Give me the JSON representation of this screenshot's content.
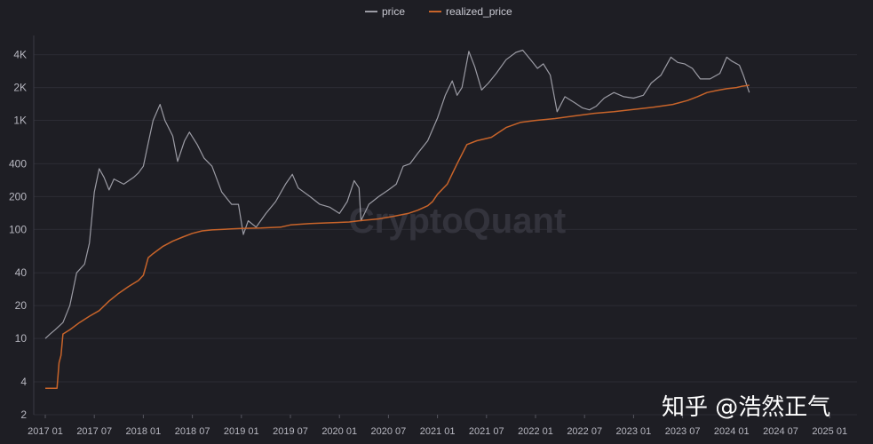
{
  "chart_data": {
    "type": "line",
    "yscale": "log",
    "ylim": [
      2,
      6000
    ],
    "grid": "horizontal",
    "legend_position": "top-center",
    "y_ticks": [
      {
        "value": 2,
        "label": "2"
      },
      {
        "value": 4,
        "label": "4"
      },
      {
        "value": 10,
        "label": "10"
      },
      {
        "value": 20,
        "label": "20"
      },
      {
        "value": 40,
        "label": "40"
      },
      {
        "value": 100,
        "label": "100"
      },
      {
        "value": 200,
        "label": "200"
      },
      {
        "value": 400,
        "label": "400"
      },
      {
        "value": 1000,
        "label": "1K"
      },
      {
        "value": 2000,
        "label": "2K"
      },
      {
        "value": 4000,
        "label": "4K"
      }
    ],
    "x_ticks": [
      "2017 01",
      "2017 07",
      "2018 01",
      "2018 07",
      "2019 01",
      "2019 07",
      "2020 01",
      "2020 07",
      "2021 01",
      "2021 07",
      "2022 01",
      "2022 07",
      "2023 01",
      "2023 07",
      "2024 01",
      "2024 07",
      "2025 01"
    ],
    "series": [
      {
        "name": "price",
        "color": "#9b9ba4",
        "points": [
          [
            0.0,
            10
          ],
          [
            0.05,
            11
          ],
          [
            0.1,
            12
          ],
          [
            0.18,
            14
          ],
          [
            0.25,
            20
          ],
          [
            0.32,
            40
          ],
          [
            0.4,
            48
          ],
          [
            0.45,
            75
          ],
          [
            0.5,
            220
          ],
          [
            0.55,
            360
          ],
          [
            0.6,
            300
          ],
          [
            0.65,
            230
          ],
          [
            0.7,
            290
          ],
          [
            0.8,
            260
          ],
          [
            0.9,
            300
          ],
          [
            0.95,
            330
          ],
          [
            1.0,
            380
          ],
          [
            1.05,
            620
          ],
          [
            1.1,
            1000
          ],
          [
            1.17,
            1400
          ],
          [
            1.22,
            1000
          ],
          [
            1.3,
            720
          ],
          [
            1.35,
            420
          ],
          [
            1.42,
            650
          ],
          [
            1.47,
            780
          ],
          [
            1.55,
            600
          ],
          [
            1.62,
            450
          ],
          [
            1.7,
            380
          ],
          [
            1.8,
            220
          ],
          [
            1.9,
            170
          ],
          [
            1.97,
            170
          ],
          [
            2.02,
            90
          ],
          [
            2.07,
            120
          ],
          [
            2.15,
            105
          ],
          [
            2.25,
            140
          ],
          [
            2.35,
            180
          ],
          [
            2.45,
            260
          ],
          [
            2.52,
            320
          ],
          [
            2.58,
            240
          ],
          [
            2.7,
            200
          ],
          [
            2.8,
            170
          ],
          [
            2.9,
            160
          ],
          [
            3.0,
            140
          ],
          [
            3.08,
            180
          ],
          [
            3.15,
            280
          ],
          [
            3.2,
            240
          ],
          [
            3.22,
            120
          ],
          [
            3.3,
            170
          ],
          [
            3.4,
            200
          ],
          [
            3.5,
            230
          ],
          [
            3.58,
            260
          ],
          [
            3.65,
            380
          ],
          [
            3.72,
            400
          ],
          [
            3.8,
            500
          ],
          [
            3.9,
            650
          ],
          [
            4.0,
            1050
          ],
          [
            4.08,
            1700
          ],
          [
            4.15,
            2300
          ],
          [
            4.2,
            1700
          ],
          [
            4.25,
            2000
          ],
          [
            4.32,
            4300
          ],
          [
            4.38,
            3100
          ],
          [
            4.45,
            1900
          ],
          [
            4.52,
            2200
          ],
          [
            4.6,
            2700
          ],
          [
            4.7,
            3600
          ],
          [
            4.8,
            4200
          ],
          [
            4.87,
            4400
          ],
          [
            4.95,
            3600
          ],
          [
            5.02,
            3000
          ],
          [
            5.08,
            3300
          ],
          [
            5.15,
            2600
          ],
          [
            5.22,
            1200
          ],
          [
            5.3,
            1650
          ],
          [
            5.4,
            1450
          ],
          [
            5.48,
            1300
          ],
          [
            5.55,
            1250
          ],
          [
            5.62,
            1350
          ],
          [
            5.7,
            1600
          ],
          [
            5.8,
            1800
          ],
          [
            5.9,
            1650
          ],
          [
            6.0,
            1600
          ],
          [
            6.1,
            1700
          ],
          [
            6.18,
            2200
          ],
          [
            6.28,
            2600
          ],
          [
            6.38,
            3800
          ],
          [
            6.45,
            3400
          ],
          [
            6.52,
            3300
          ],
          [
            6.6,
            3000
          ],
          [
            6.68,
            2400
          ],
          [
            6.78,
            2400
          ],
          [
            6.88,
            2700
          ],
          [
            6.95,
            3800
          ],
          [
            7.0,
            3500
          ],
          [
            7.08,
            3200
          ],
          [
            7.12,
            2600
          ],
          [
            7.18,
            1800
          ]
        ]
      },
      {
        "name": "realized_price",
        "color": "#c8642a",
        "points": [
          [
            0.0,
            3.5
          ],
          [
            0.12,
            3.5
          ],
          [
            0.14,
            6
          ],
          [
            0.16,
            7
          ],
          [
            0.18,
            11
          ],
          [
            0.25,
            12
          ],
          [
            0.35,
            14
          ],
          [
            0.45,
            16
          ],
          [
            0.55,
            18
          ],
          [
            0.65,
            22
          ],
          [
            0.75,
            26
          ],
          [
            0.85,
            30
          ],
          [
            0.95,
            34
          ],
          [
            1.0,
            38
          ],
          [
            1.05,
            55
          ],
          [
            1.1,
            60
          ],
          [
            1.2,
            70
          ],
          [
            1.3,
            78
          ],
          [
            1.4,
            85
          ],
          [
            1.5,
            92
          ],
          [
            1.6,
            97
          ],
          [
            1.7,
            99
          ],
          [
            1.8,
            100
          ],
          [
            1.9,
            101
          ],
          [
            2.0,
            102
          ],
          [
            2.2,
            103
          ],
          [
            2.4,
            105
          ],
          [
            2.5,
            110
          ],
          [
            2.7,
            113
          ],
          [
            2.9,
            115
          ],
          [
            3.1,
            117
          ],
          [
            3.2,
            120
          ],
          [
            3.4,
            125
          ],
          [
            3.55,
            132
          ],
          [
            3.7,
            140
          ],
          [
            3.8,
            150
          ],
          [
            3.9,
            165
          ],
          [
            3.95,
            180
          ],
          [
            4.0,
            210
          ],
          [
            4.1,
            260
          ],
          [
            4.2,
            400
          ],
          [
            4.3,
            600
          ],
          [
            4.4,
            650
          ],
          [
            4.55,
            700
          ],
          [
            4.7,
            860
          ],
          [
            4.85,
            960
          ],
          [
            5.0,
            1000
          ],
          [
            5.2,
            1040
          ],
          [
            5.4,
            1100
          ],
          [
            5.6,
            1160
          ],
          [
            5.8,
            1200
          ],
          [
            6.0,
            1260
          ],
          [
            6.2,
            1320
          ],
          [
            6.4,
            1400
          ],
          [
            6.55,
            1520
          ],
          [
            6.65,
            1650
          ],
          [
            6.75,
            1800
          ],
          [
            6.85,
            1880
          ],
          [
            6.95,
            1950
          ],
          [
            7.05,
            2000
          ],
          [
            7.1,
            2050
          ],
          [
            7.18,
            2100
          ]
        ]
      }
    ]
  },
  "watermark": {
    "text": "CryptoQuant"
  },
  "brand": {
    "text": "知乎 @浩然正气"
  }
}
